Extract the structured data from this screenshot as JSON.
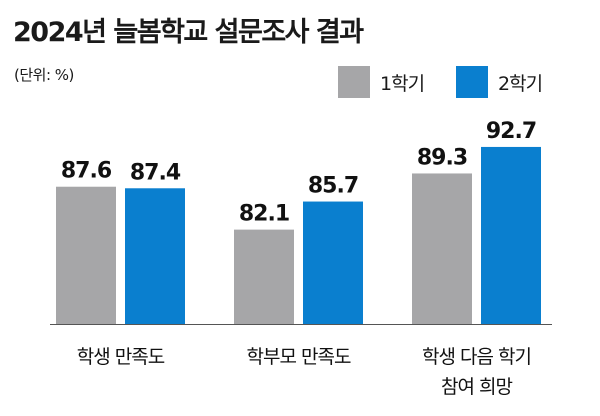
{
  "chart_data": {
    "type": "bar",
    "title": "2024년 늘봄학교 설문조사 결과",
    "unit_note": "(단위: %)",
    "categories": [
      [
        "학생 만족도"
      ],
      [
        "학부모 만족도"
      ],
      [
        "학생 다음 학기",
        "참여 희망"
      ]
    ],
    "series": [
      {
        "name": "1학기",
        "color": "#a6a6a8",
        "values": [
          87.6,
          82.1,
          89.3
        ]
      },
      {
        "name": "2학기",
        "color": "#0a7fcf",
        "values": [
          87.4,
          85.7,
          92.7
        ]
      }
    ],
    "legend_position": "top-right",
    "grid": false,
    "ylim": [
      70,
      95
    ]
  }
}
